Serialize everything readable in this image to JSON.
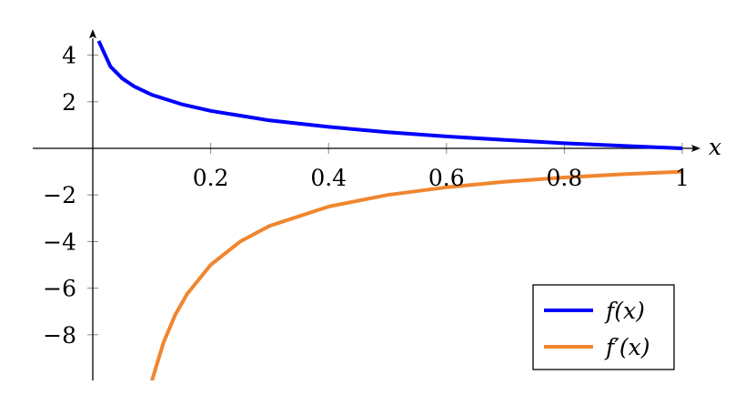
{
  "chart_data": {
    "type": "line",
    "title": "",
    "xlabel": "x",
    "ylabel": "",
    "xlim": [
      0,
      1
    ],
    "ylim": [
      -9.9,
      4.8
    ],
    "grid": false,
    "legend_position": "bottom-right",
    "x_ticks": [
      {
        "value": 0.2,
        "label": "0.2"
      },
      {
        "value": 0.4,
        "label": "0.4"
      },
      {
        "value": 0.6,
        "label": "0.6"
      },
      {
        "value": 0.8,
        "label": "0.8"
      },
      {
        "value": 1.0,
        "label": "1"
      }
    ],
    "y_ticks": [
      {
        "value": 4,
        "label": "4"
      },
      {
        "value": 2,
        "label": "2"
      },
      {
        "value": -2,
        "label": "−2"
      },
      {
        "value": -4,
        "label": "−4"
      },
      {
        "value": -6,
        "label": "−6"
      },
      {
        "value": -8,
        "label": "−8"
      }
    ],
    "series": [
      {
        "name": "f(x)",
        "color": "#0000ff",
        "x": [
          0.01,
          0.03,
          0.05,
          0.07,
          0.1,
          0.15,
          0.2,
          0.3,
          0.4,
          0.5,
          0.6,
          0.7,
          0.8,
          0.9,
          1.0
        ],
        "y": [
          4.61,
          3.51,
          3.0,
          2.66,
          2.3,
          1.9,
          1.61,
          1.2,
          0.92,
          0.69,
          0.51,
          0.36,
          0.22,
          0.11,
          0.0
        ]
      },
      {
        "name": "f′(x)",
        "color": "#f0862e",
        "x": [
          0.1,
          0.12,
          0.14,
          0.16,
          0.2,
          0.25,
          0.3,
          0.4,
          0.5,
          0.6,
          0.7,
          0.8,
          0.9,
          1.0
        ],
        "y": [
          -10.0,
          -8.33,
          -7.14,
          -6.25,
          -5.0,
          -4.0,
          -3.33,
          -2.5,
          -2.0,
          -1.67,
          -1.43,
          -1.25,
          -1.11,
          -1.0
        ]
      }
    ]
  }
}
